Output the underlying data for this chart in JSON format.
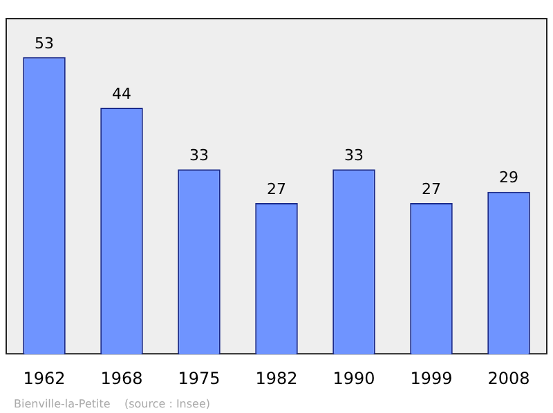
{
  "chart_data": {
    "type": "bar",
    "categories": [
      "1962",
      "1968",
      "1975",
      "1982",
      "1990",
      "1999",
      "2008"
    ],
    "values": [
      53,
      44,
      33,
      27,
      33,
      27,
      29
    ],
    "color": "#6f94ff",
    "data_labels": true,
    "grid": false,
    "legend": false,
    "annotations": [
      "Bienville-la-Petite    (source : Insee)"
    ]
  }
}
